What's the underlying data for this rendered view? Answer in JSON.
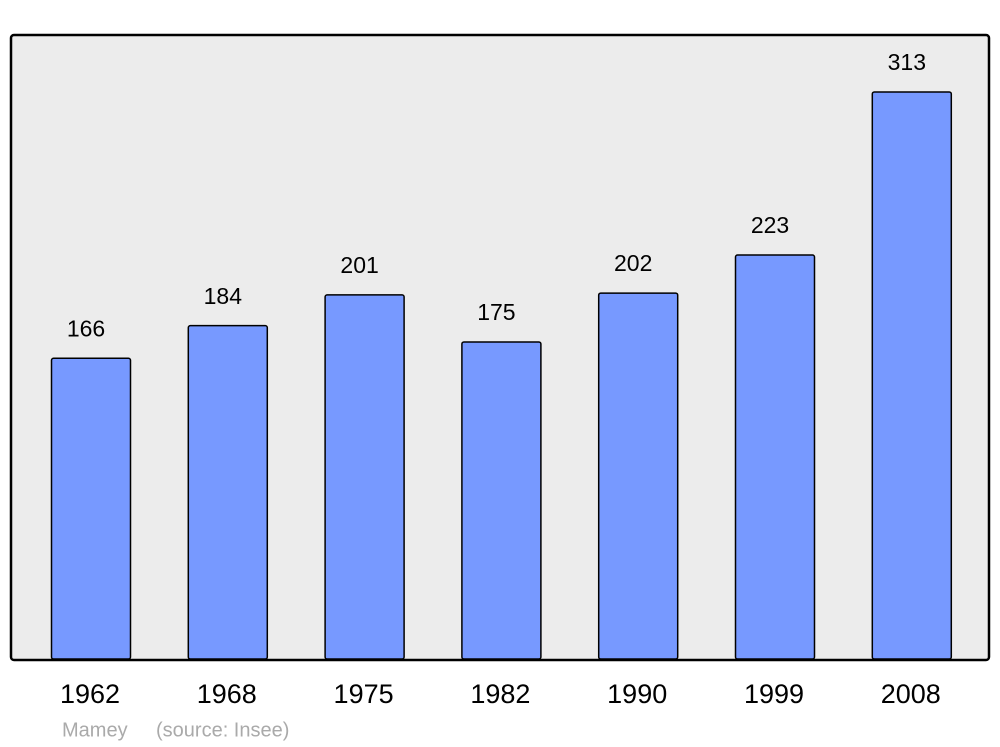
{
  "chart_data": {
    "type": "bar",
    "categories": [
      "1962",
      "1968",
      "1975",
      "1982",
      "1990",
      "1999",
      "2008"
    ],
    "values": [
      166,
      184,
      201,
      175,
      202,
      223,
      313
    ],
    "color": "#7799ff",
    "caption": "Mamey",
    "source": "(source: Insee)"
  }
}
